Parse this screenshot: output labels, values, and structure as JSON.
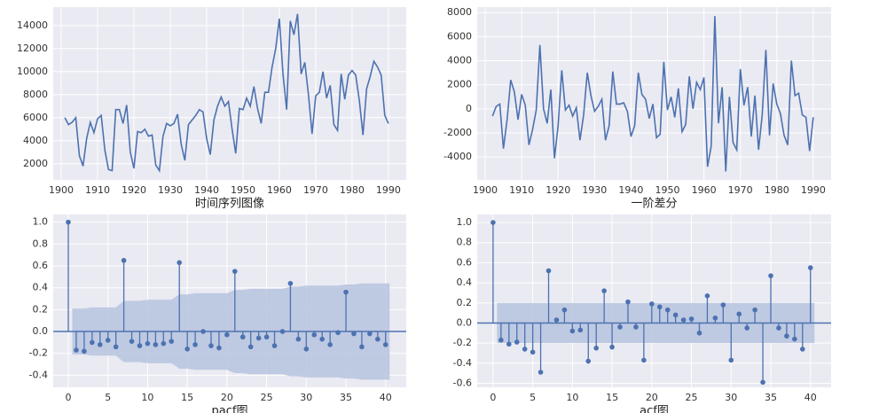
{
  "chart_data": [
    {
      "type": "line",
      "xlabel": "时间序列图像",
      "color": "#4c72b0",
      "grid": true,
      "x": [
        1901,
        1902,
        1903,
        1904,
        1905,
        1906,
        1907,
        1908,
        1909,
        1910,
        1911,
        1912,
        1913,
        1914,
        1915,
        1916,
        1917,
        1918,
        1919,
        1920,
        1921,
        1922,
        1923,
        1924,
        1925,
        1926,
        1927,
        1928,
        1929,
        1930,
        1931,
        1932,
        1933,
        1934,
        1935,
        1936,
        1937,
        1938,
        1939,
        1940,
        1941,
        1942,
        1943,
        1944,
        1945,
        1946,
        1947,
        1948,
        1949,
        1950,
        1951,
        1952,
        1953,
        1954,
        1955,
        1956,
        1957,
        1958,
        1959,
        1960,
        1961,
        1962,
        1963,
        1964,
        1965,
        1966,
        1967,
        1968,
        1969,
        1970,
        1971,
        1972,
        1973,
        1974,
        1975,
        1976,
        1977,
        1978,
        1979,
        1980,
        1981,
        1982,
        1983,
        1984,
        1985,
        1986,
        1987,
        1988,
        1989,
        1990
      ],
      "values": [
        6000,
        5400,
        5600,
        6000,
        2700,
        1800,
        4200,
        5600,
        4700,
        5900,
        6200,
        3200,
        1500,
        1400,
        6700,
        6700,
        5500,
        7100,
        3000,
        1600,
        4800,
        4700,
        5000,
        4400,
        4500,
        1900,
        1400,
        4400,
        5500,
        5300,
        5500,
        6300,
        3700,
        2300,
        5400,
        5800,
        6200,
        6700,
        6500,
        4200,
        2800,
        5800,
        7000,
        7800,
        7000,
        7400,
        5000,
        2900,
        6800,
        6700,
        7700,
        7000,
        8700,
        6800,
        5500,
        8200,
        8200,
        10400,
        12000,
        14600,
        9800,
        6700,
        14400,
        13200,
        15000,
        9800,
        10800,
        8000,
        4600,
        7900,
        8200,
        10000,
        7700,
        8800,
        5400,
        4900,
        9800,
        7600,
        9700,
        10100,
        9700,
        7500,
        4500,
        8500,
        9600,
        10900,
        10400,
        9700,
        6200,
        5500
      ],
      "xlim": [
        1897.8,
        1994.9
      ],
      "xticks": [
        1900,
        1910,
        1920,
        1930,
        1940,
        1950,
        1960,
        1970,
        1980,
        1990
      ],
      "ylim": [
        600,
        15600
      ],
      "yticks": [
        2000,
        4000,
        6000,
        8000,
        10000,
        12000,
        14000
      ]
    },
    {
      "type": "line",
      "xlabel": "一阶差分",
      "color": "#4c72b0",
      "grid": true,
      "x": [
        1902,
        1903,
        1904,
        1905,
        1906,
        1907,
        1908,
        1909,
        1910,
        1911,
        1912,
        1913,
        1914,
        1915,
        1916,
        1917,
        1918,
        1919,
        1920,
        1921,
        1922,
        1923,
        1924,
        1925,
        1926,
        1927,
        1928,
        1929,
        1930,
        1931,
        1932,
        1933,
        1934,
        1935,
        1936,
        1937,
        1938,
        1939,
        1940,
        1941,
        1942,
        1943,
        1944,
        1945,
        1946,
        1947,
        1948,
        1949,
        1950,
        1951,
        1952,
        1953,
        1954,
        1955,
        1956,
        1957,
        1958,
        1959,
        1960,
        1961,
        1962,
        1963,
        1964,
        1965,
        1966,
        1967,
        1968,
        1969,
        1970,
        1971,
        1972,
        1973,
        1974,
        1975,
        1976,
        1977,
        1978,
        1979,
        1980,
        1981,
        1982,
        1983,
        1984,
        1985,
        1986,
        1987,
        1988,
        1989,
        1990
      ],
      "values": [
        -600,
        200,
        400,
        -3300,
        -900,
        2400,
        1400,
        -900,
        1200,
        300,
        -3000,
        -1700,
        -100,
        5300,
        0,
        -1200,
        1600,
        -4100,
        -1400,
        3200,
        -100,
        300,
        -600,
        100,
        -2600,
        -500,
        3000,
        1100,
        -200,
        200,
        800,
        -2600,
        -1400,
        3100,
        400,
        400,
        500,
        -200,
        -2300,
        -1400,
        3000,
        1200,
        800,
        -800,
        400,
        -2400,
        -2100,
        3900,
        -100,
        1000,
        -700,
        1700,
        -1900,
        -1300,
        2700,
        0,
        2200,
        1600,
        2600,
        -4800,
        -3100,
        7700,
        -1200,
        1800,
        -5200,
        1000,
        -2800,
        -3400,
        3300,
        300,
        1800,
        -2300,
        1100,
        -3400,
        -500,
        4900,
        -2200,
        2100,
        400,
        -400,
        -2200,
        -3000,
        4000,
        1100,
        1300,
        -500,
        -700,
        -3500,
        -700
      ],
      "xlim": [
        1897.8,
        1994.9
      ],
      "xticks": [
        1900,
        1910,
        1920,
        1930,
        1940,
        1950,
        1960,
        1970,
        1980,
        1990
      ],
      "ylim": [
        -5900,
        8450
      ],
      "yticks": [
        -4000,
        -2000,
        0,
        2000,
        4000,
        6000,
        8000
      ]
    },
    {
      "type": "stem",
      "xlabel": "pacf图",
      "color": "#4c72b0",
      "band_color": "#b3c0dd",
      "grid": true,
      "x": [
        0,
        1,
        2,
        3,
        4,
        5,
        6,
        7,
        8,
        9,
        10,
        11,
        12,
        13,
        14,
        15,
        16,
        17,
        18,
        19,
        20,
        21,
        22,
        23,
        24,
        25,
        26,
        27,
        28,
        29,
        30,
        31,
        32,
        33,
        34,
        35,
        36,
        37,
        38,
        39,
        40
      ],
      "values": [
        1.0,
        -0.17,
        -0.18,
        -0.1,
        -0.12,
        -0.08,
        -0.14,
        0.65,
        -0.09,
        -0.13,
        -0.11,
        -0.12,
        -0.11,
        -0.09,
        0.63,
        -0.16,
        -0.12,
        0.0,
        -0.13,
        -0.15,
        -0.03,
        0.55,
        -0.05,
        -0.14,
        -0.06,
        -0.05,
        -0.13,
        0.0,
        0.44,
        -0.07,
        -0.16,
        -0.03,
        -0.07,
        -0.12,
        -0.01,
        0.36,
        -0.02,
        -0.14,
        -0.02,
        -0.07,
        -0.12
      ],
      "confint": [
        null,
        0.21,
        0.21,
        0.22,
        0.22,
        0.22,
        0.22,
        0.28,
        0.28,
        0.28,
        0.29,
        0.29,
        0.29,
        0.29,
        0.34,
        0.34,
        0.35,
        0.35,
        0.35,
        0.35,
        0.35,
        0.38,
        0.38,
        0.39,
        0.39,
        0.39,
        0.39,
        0.39,
        0.41,
        0.41,
        0.42,
        0.42,
        0.42,
        0.42,
        0.42,
        0.43,
        0.43,
        0.44,
        0.44,
        0.44,
        0.44
      ],
      "xlim": [
        -1.9,
        42.6
      ],
      "xticks": [
        0,
        5,
        10,
        15,
        20,
        25,
        30,
        35,
        40
      ],
      "ylim": [
        -0.51,
        1.07
      ],
      "yticks": [
        -0.4,
        -0.2,
        {
          "value": 0,
          "label": "0.0"
        },
        0.2,
        0.4,
        0.6,
        0.8,
        {
          "value": 1,
          "label": "1.0"
        }
      ]
    },
    {
      "type": "stem",
      "xlabel": "acf图",
      "color": "#4c72b0",
      "band_color": "#b3c0dd",
      "grid": true,
      "x": [
        0,
        1,
        2,
        3,
        4,
        5,
        6,
        7,
        8,
        9,
        10,
        11,
        12,
        13,
        14,
        15,
        16,
        17,
        18,
        19,
        20,
        21,
        22,
        23,
        24,
        25,
        26,
        27,
        28,
        29,
        30,
        31,
        32,
        33,
        34,
        35,
        36,
        37,
        38,
        39,
        40
      ],
      "values": [
        1.0,
        -0.17,
        -0.21,
        -0.19,
        -0.26,
        -0.29,
        -0.49,
        0.52,
        0.03,
        0.13,
        -0.08,
        -0.07,
        -0.38,
        -0.25,
        0.32,
        -0.24,
        -0.04,
        0.21,
        -0.04,
        -0.37,
        0.19,
        0.16,
        0.13,
        0.08,
        0.03,
        0.04,
        -0.1,
        0.27,
        0.05,
        0.18,
        -0.37,
        0.09,
        -0.05,
        0.13,
        -0.59,
        0.47,
        -0.05,
        -0.13,
        -0.16,
        -0.26,
        0.55
      ],
      "confint": [
        null,
        0.2,
        0.2,
        0.2,
        0.2,
        0.2,
        0.2,
        0.2,
        0.2,
        0.2,
        0.2,
        0.2,
        0.2,
        0.2,
        0.2,
        0.2,
        0.2,
        0.2,
        0.2,
        0.2,
        0.2,
        0.2,
        0.2,
        0.2,
        0.2,
        0.2,
        0.2,
        0.2,
        0.2,
        0.2,
        0.2,
        0.2,
        0.2,
        0.2,
        0.2,
        0.2,
        0.2,
        0.2,
        0.2,
        0.2,
        0.2
      ],
      "xlim": [
        -2,
        42.6
      ],
      "xticks": [
        0,
        5,
        10,
        15,
        20,
        25,
        30,
        35,
        40
      ],
      "ylim": [
        -0.64,
        1.08
      ],
      "yticks": [
        -0.6,
        -0.4,
        -0.2,
        {
          "value": 0,
          "label": "0.0"
        },
        0.2,
        0.4,
        0.6,
        0.8,
        {
          "value": 1,
          "label": "1.0"
        }
      ]
    }
  ]
}
